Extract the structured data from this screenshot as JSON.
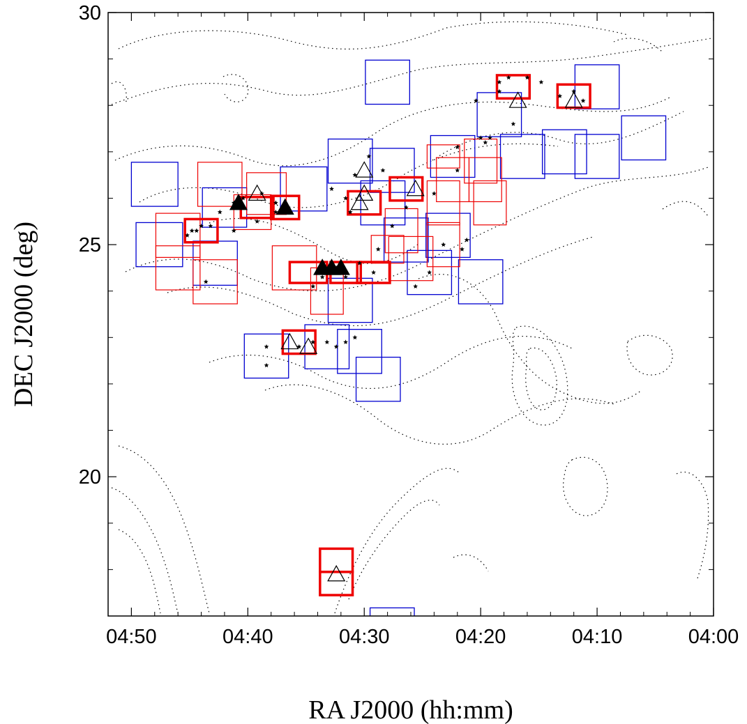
{
  "chart_data": {
    "type": "scatter",
    "xlabel": "RA J2000 (hh:mm)",
    "ylabel": "DEC J2000 (deg)",
    "x_unit": "deg",
    "x_axis_inverted": true,
    "xlim": [
      73.0,
      60.0
    ],
    "ylim": [
      17.0,
      30.0
    ],
    "x_ticks": [
      {
        "value": 72.5,
        "label": "04:50"
      },
      {
        "value": 70.0,
        "label": "04:40"
      },
      {
        "value": 67.5,
        "label": "04:30"
      },
      {
        "value": 65.0,
        "label": "04:20"
      },
      {
        "value": 62.5,
        "label": "04:10"
      },
      {
        "value": 60.0,
        "label": "04:00"
      }
    ],
    "y_ticks": [
      {
        "value": 30,
        "label": "30"
      },
      {
        "value": 25,
        "label": "25"
      },
      {
        "value": 20,
        "label": "20"
      }
    ],
    "grid": false,
    "legend": "none",
    "colors": {
      "contour": "#000000",
      "blue_fields": "#0000d0",
      "red_fields": "#ee0000",
      "stars": "#000000",
      "open_triangles": "#000000",
      "filled_triangles": "#000000"
    },
    "series": [
      {
        "style": "blue-field",
        "fields": [
          [
            72.0,
            26.3,
            1.0,
            0.95
          ],
          [
            71.9,
            25.0,
            1.0,
            0.95
          ],
          [
            70.7,
            24.6,
            0.95,
            0.95
          ],
          [
            70.5,
            25.8,
            0.95,
            0.85
          ],
          [
            68.8,
            26.2,
            1.0,
            0.95
          ],
          [
            67.8,
            26.8,
            0.95,
            0.95
          ],
          [
            66.9,
            26.6,
            0.95,
            0.95
          ],
          [
            67.1,
            25.9,
            0.95,
            0.95
          ],
          [
            65.6,
            26.9,
            0.95,
            0.9
          ],
          [
            64.6,
            27.8,
            0.95,
            0.95
          ],
          [
            63.2,
            27.0,
            0.95,
            0.95
          ],
          [
            62.5,
            28.4,
            0.95,
            0.95
          ],
          [
            61.5,
            27.3,
            0.95,
            0.95
          ],
          [
            59.2,
            26.3,
            0.95,
            0.95
          ],
          [
            64.1,
            26.9,
            0.95,
            0.95
          ],
          [
            62.5,
            26.9,
            0.95,
            0.95
          ],
          [
            67.0,
            28.5,
            0.95,
            0.95
          ],
          [
            66.6,
            25.1,
            0.95,
            0.95
          ],
          [
            65.7,
            25.2,
            0.95,
            0.95
          ],
          [
            66.1,
            24.4,
            0.95,
            0.95
          ],
          [
            65.0,
            24.2,
            0.95,
            0.95
          ],
          [
            67.8,
            23.8,
            0.95,
            0.95
          ],
          [
            68.3,
            22.8,
            0.95,
            0.95
          ],
          [
            67.6,
            22.7,
            0.95,
            0.95
          ],
          [
            67.2,
            22.1,
            0.95,
            0.95
          ],
          [
            69.6,
            22.6,
            0.95,
            0.95
          ],
          [
            66.9,
            16.7,
            0.95,
            0.95
          ]
        ]
      },
      {
        "style": "red-field",
        "fields": [
          [
            70.6,
            26.3,
            0.95,
            0.95
          ],
          [
            69.6,
            26.1,
            0.85,
            0.9
          ],
          [
            69.9,
            25.7,
            0.8,
            0.75
          ],
          [
            71.5,
            25.2,
            0.95,
            0.95
          ],
          [
            71.5,
            24.5,
            0.95,
            0.95
          ],
          [
            70.7,
            24.2,
            0.95,
            0.95
          ],
          [
            69.0,
            24.5,
            0.95,
            0.95
          ],
          [
            68.3,
            24.0,
            0.7,
            1.0
          ],
          [
            66.5,
            24.7,
            0.95,
            0.95
          ],
          [
            67.0,
            24.9,
            0.7,
            0.6
          ],
          [
            65.8,
            26.9,
            0.7,
            0.5
          ],
          [
            65.8,
            25.0,
            0.7,
            0.95
          ],
          [
            65.6,
            26.4,
            0.7,
            0.95
          ],
          [
            65.8,
            25.9,
            0.7,
            0.95
          ],
          [
            65.0,
            26.8,
            0.7,
            0.95
          ],
          [
            64.9,
            26.4,
            0.7,
            0.95
          ],
          [
            64.8,
            25.9,
            0.7,
            0.95
          ],
          [
            66.7,
            25.3,
            0.7,
            0.95
          ]
        ]
      },
      {
        "style": "red-field-bold",
        "fields": [
          [
            69.8,
            25.8,
            0.7,
            0.45
          ],
          [
            69.2,
            25.8,
            0.6,
            0.5
          ],
          [
            71.0,
            25.3,
            0.7,
            0.5
          ],
          [
            68.7,
            24.4,
            0.8,
            0.45
          ],
          [
            67.3,
            24.4,
            0.7,
            0.45
          ],
          [
            67.9,
            24.4,
            0.65,
            0.45
          ],
          [
            67.5,
            25.9,
            0.7,
            0.5
          ],
          [
            66.6,
            26.2,
            0.7,
            0.5
          ],
          [
            64.3,
            28.4,
            0.7,
            0.5
          ],
          [
            63.0,
            28.2,
            0.7,
            0.5
          ],
          [
            68.9,
            22.9,
            0.7,
            0.5
          ],
          [
            68.1,
            18.2,
            0.7,
            0.5
          ],
          [
            68.1,
            17.7,
            0.7,
            0.5
          ]
        ]
      },
      {
        "style": "star",
        "points": [
          [
            71.3,
            25.2
          ],
          [
            71.2,
            25.3
          ],
          [
            71.1,
            25.3
          ],
          [
            71.0,
            25.4
          ],
          [
            70.8,
            25.4
          ],
          [
            70.6,
            25.7
          ],
          [
            70.3,
            25.9
          ],
          [
            70.1,
            26.0
          ],
          [
            69.7,
            26.1
          ],
          [
            69.4,
            25.7
          ],
          [
            69.4,
            25.9
          ],
          [
            69.8,
            25.5
          ],
          [
            70.3,
            25.3
          ],
          [
            68.4,
            24.3
          ],
          [
            68.1,
            24.5
          ],
          [
            67.9,
            24.3
          ],
          [
            67.6,
            24.6
          ],
          [
            67.3,
            24.4
          ],
          [
            67.2,
            24.9
          ],
          [
            67.8,
            25.7
          ],
          [
            67.9,
            26.0
          ],
          [
            68.2,
            26.2
          ],
          [
            67.7,
            26.5
          ],
          [
            67.1,
            26.6
          ],
          [
            67.4,
            26.9
          ],
          [
            66.9,
            25.4
          ],
          [
            66.6,
            25.8
          ],
          [
            66.0,
            26.1
          ],
          [
            65.5,
            26.6
          ],
          [
            65.5,
            27.1
          ],
          [
            65.1,
            28.1
          ],
          [
            64.6,
            28.3
          ],
          [
            64.6,
            28.5
          ],
          [
            64.4,
            28.6
          ],
          [
            64.0,
            28.6
          ],
          [
            63.7,
            28.5
          ],
          [
            63.3,
            28.2
          ],
          [
            63.0,
            28.3
          ],
          [
            62.8,
            28.1
          ],
          [
            65.0,
            27.3
          ],
          [
            64.8,
            27.3
          ],
          [
            65.3,
            25.1
          ],
          [
            65.4,
            24.9
          ],
          [
            64.3,
            27.6
          ],
          [
            64.9,
            27.2
          ],
          [
            68.9,
            22.8
          ],
          [
            68.6,
            22.9
          ],
          [
            68.3,
            22.9
          ],
          [
            68.1,
            22.8
          ],
          [
            67.9,
            22.9
          ],
          [
            67.7,
            23.0
          ],
          [
            69.6,
            22.8
          ],
          [
            69.6,
            22.4
          ],
          [
            66.4,
            24.1
          ],
          [
            66.1,
            24.4
          ],
          [
            65.8,
            25.0
          ],
          [
            70.9,
            24.2
          ],
          [
            68.6,
            24.1
          ]
        ]
      },
      {
        "style": "triangle-open",
        "points": [
          [
            69.8,
            26.1
          ],
          [
            67.5,
            26.6
          ],
          [
            67.5,
            26.1
          ],
          [
            67.6,
            25.9
          ],
          [
            66.4,
            26.2
          ],
          [
            64.2,
            28.1
          ],
          [
            63.0,
            28.1
          ],
          [
            69.1,
            22.9
          ],
          [
            68.7,
            22.8
          ],
          [
            68.1,
            17.9
          ]
        ]
      },
      {
        "style": "triangle-filled",
        "points": [
          [
            70.2,
            25.9
          ],
          [
            69.2,
            25.8
          ],
          [
            68.4,
            24.5
          ],
          [
            68.2,
            24.5
          ],
          [
            68.0,
            24.5
          ]
        ]
      }
    ]
  }
}
